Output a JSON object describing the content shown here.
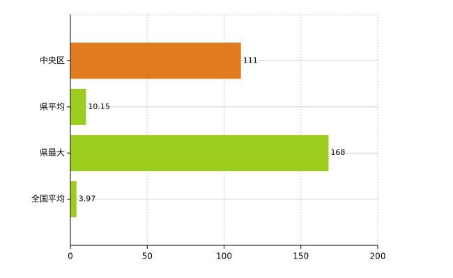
{
  "chart_data": {
    "type": "hbar",
    "categories": [
      "中央区",
      "県平均",
      "県最大",
      "全国平均"
    ],
    "values": [
      111,
      10.15,
      168,
      3.97
    ],
    "colors": [
      "#e07b1f",
      "#9ccc1e",
      "#9ccc1e",
      "#9ccc1e"
    ],
    "xlim": [
      0,
      200
    ],
    "xticks": [
      0,
      50,
      100,
      150,
      200
    ],
    "grid": true
  }
}
